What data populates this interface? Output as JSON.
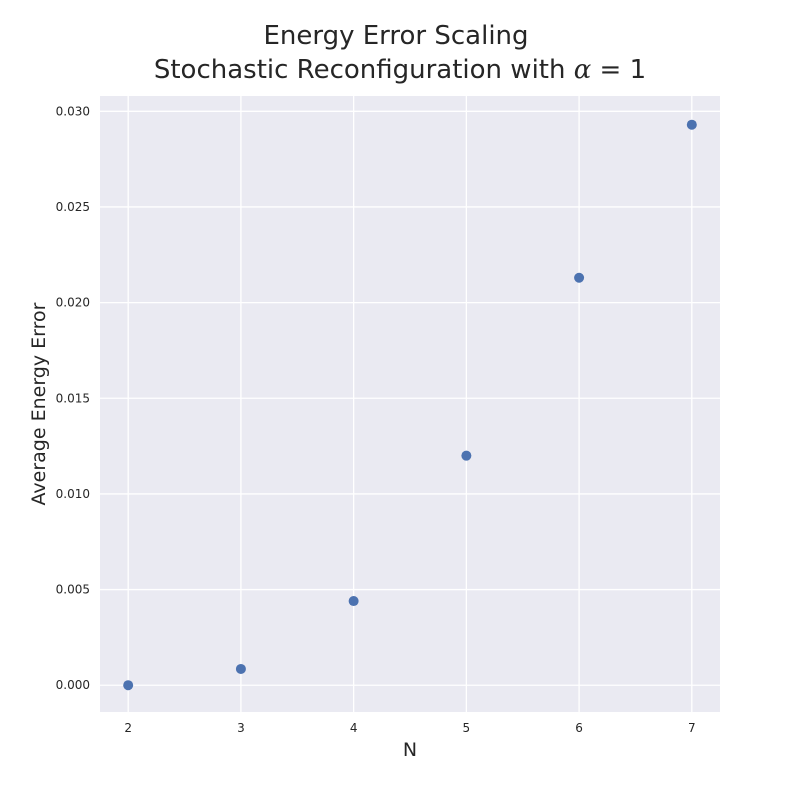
{
  "chart_data": {
    "type": "scatter",
    "title_line1": "Energy Error Scaling",
    "title_line2_prefix": "Stochastic Reconfiguration with ",
    "title_line2_symbol": "α",
    "title_line2_suffix": " = 1",
    "xlabel": "N",
    "ylabel": "Average Energy Error",
    "x": [
      2,
      3,
      4,
      5,
      6,
      7
    ],
    "y": [
      0.0,
      0.00085,
      0.0044,
      0.012,
      0.0213,
      0.0293
    ],
    "xlim": [
      1.75,
      7.25
    ],
    "ylim": [
      -0.0014,
      0.0308
    ],
    "xticks": [
      2,
      3,
      4,
      5,
      6,
      7
    ],
    "xtick_labels": [
      "2",
      "3",
      "4",
      "5",
      "6",
      "7"
    ],
    "yticks": [
      0.0,
      0.005,
      0.01,
      0.015,
      0.02,
      0.025,
      0.03
    ],
    "ytick_labels": [
      "0.000",
      "0.005",
      "0.010",
      "0.015",
      "0.020",
      "0.025",
      "0.030"
    ],
    "grid": true,
    "colors": {
      "background": "#eaeaf2",
      "grid": "#ffffff",
      "marker": "#4c72b0"
    }
  }
}
